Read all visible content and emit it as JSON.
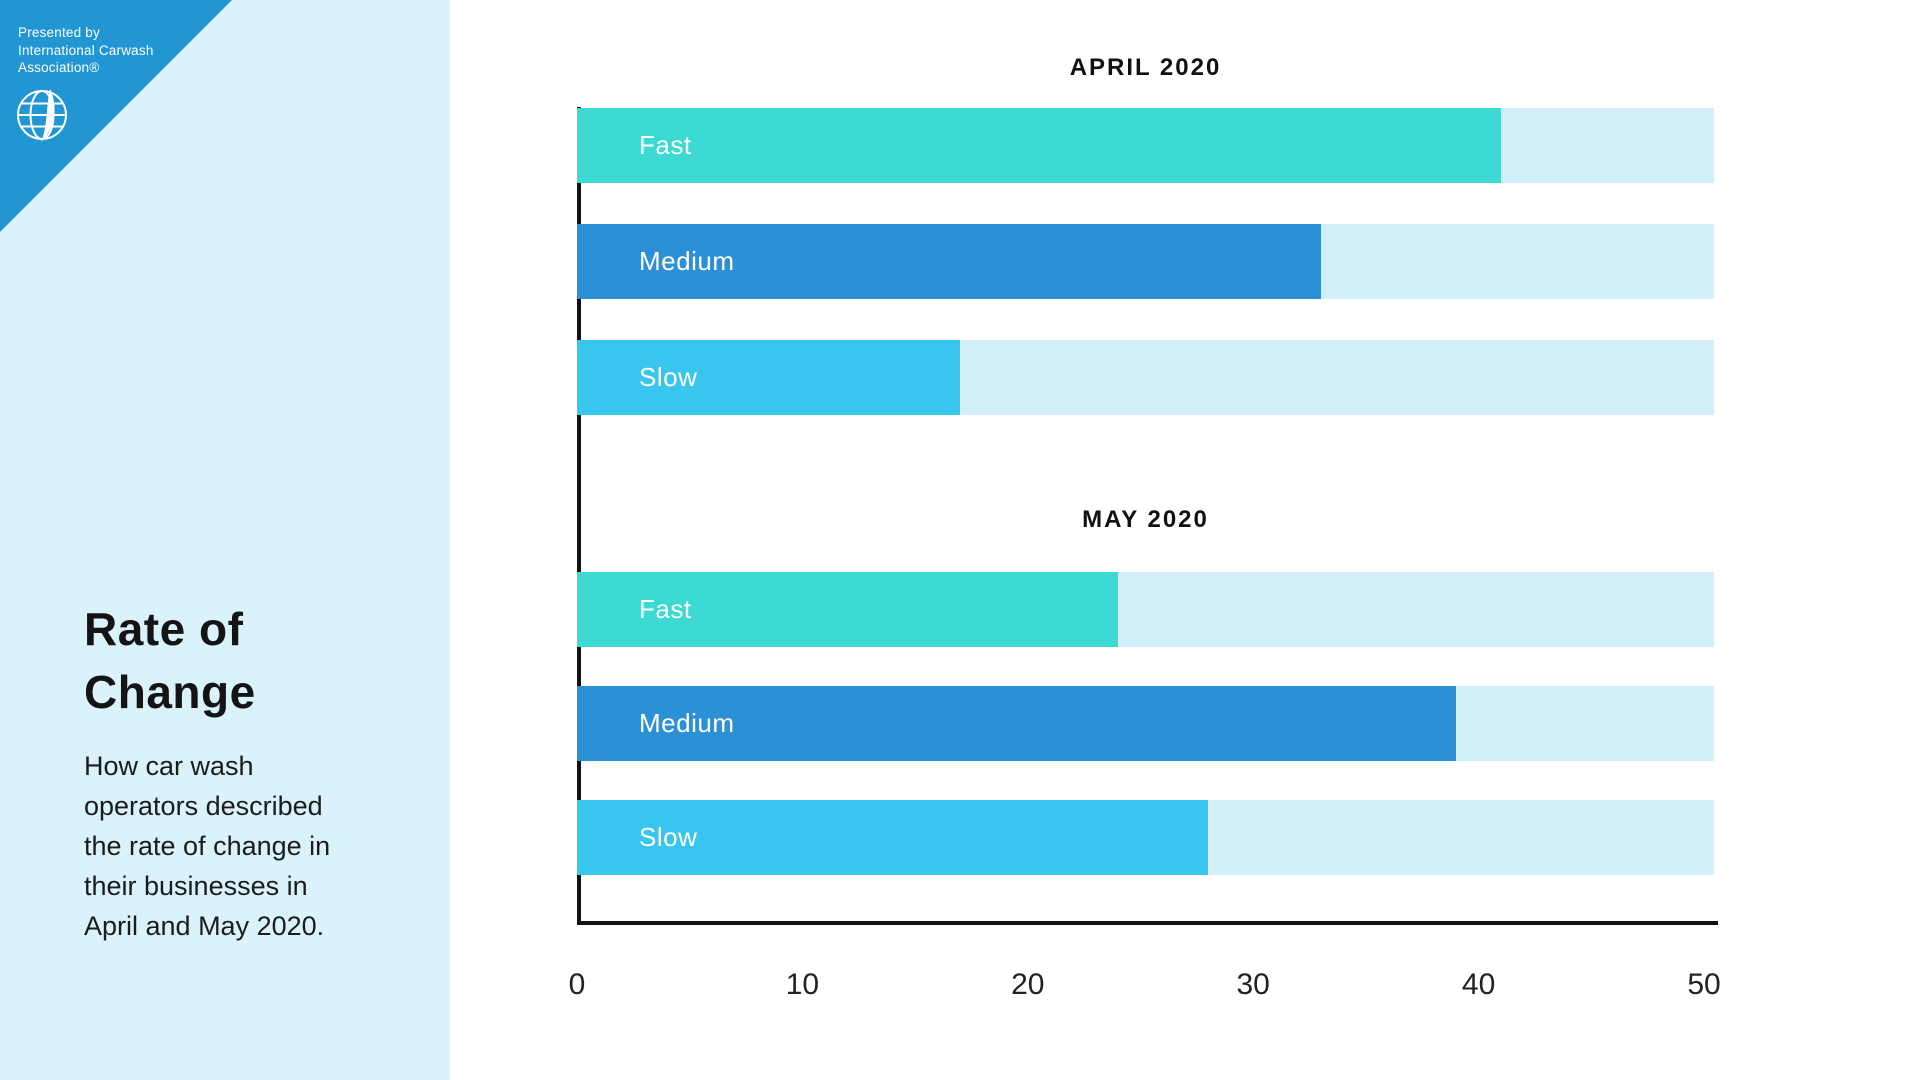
{
  "sidebar": {
    "badge_lines": [
      "Presented by",
      "International Carwash",
      "Association®"
    ],
    "logo_icon": "globe-icon",
    "title_lines": [
      "Rate of",
      "Change"
    ],
    "description_lines": [
      "How car wash",
      "operators described",
      "the rate of change in",
      "their businesses in",
      "April and May 2020."
    ]
  },
  "colors": {
    "sidebar_bg": "#D9F2FB",
    "corner_triangle": "#2196D3",
    "fast": "#3DD9D3",
    "medium": "#2B90D6",
    "slow": "#38C6EE",
    "track": "#D3F0FA",
    "axis": "#121212",
    "bar_label_text": "#FFFFFF"
  },
  "chart_data": {
    "type": "bar",
    "orientation": "horizontal",
    "title": "Rate of Change",
    "subtitle": "How car wash operators described the rate of change in their businesses in April and May 2020.",
    "xlim": [
      0,
      50
    ],
    "x_ticks": [
      0,
      10,
      20,
      30,
      40,
      50
    ],
    "grid": false,
    "legend": "none",
    "track_full_width_value": 50.4,
    "bar_colors": {
      "Fast": "#3DD9D3",
      "Medium": "#2B90D6",
      "Slow": "#38C6EE"
    },
    "groups": [
      {
        "title": "APRIL 2020",
        "categories": [
          "Fast",
          "Medium",
          "Slow"
        ],
        "values": [
          41,
          33,
          17
        ]
      },
      {
        "title": "MAY 2020",
        "categories": [
          "Fast",
          "Medium",
          "Slow"
        ],
        "values": [
          24,
          39,
          28
        ]
      }
    ]
  }
}
